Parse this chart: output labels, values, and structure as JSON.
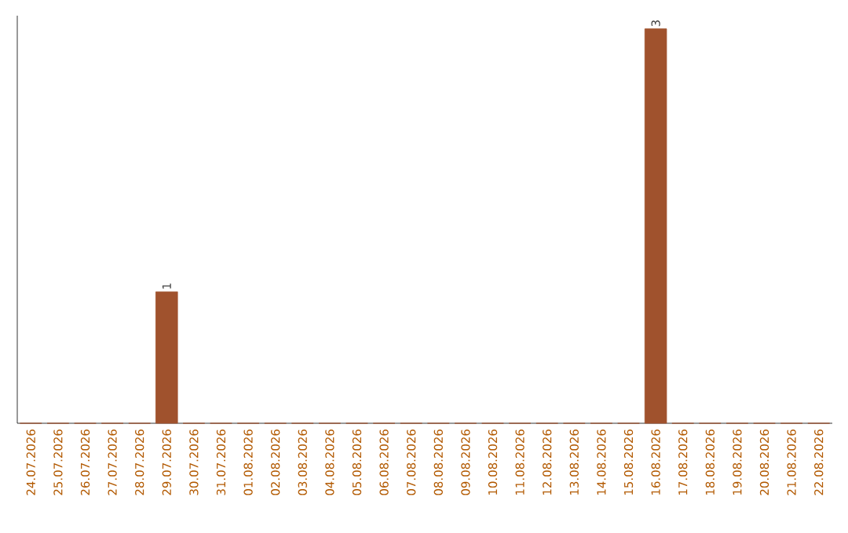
{
  "chart_data": {
    "type": "bar",
    "categories": [
      "24.07.2026",
      "25.07.2026",
      "26.07.2026",
      "27.07.2026",
      "28.07.2026",
      "29.07.2026",
      "30.07.2026",
      "31.07.2026",
      "01.08.2026",
      "02.08.2026",
      "03.08.2026",
      "04.08.2026",
      "05.08.2026",
      "06.08.2026",
      "07.08.2026",
      "08.08.2026",
      "09.08.2026",
      "10.08.2026",
      "11.08.2026",
      "12.08.2026",
      "13.08.2026",
      "14.08.2026",
      "15.08.2026",
      "16.08.2026",
      "17.08.2026",
      "18.08.2026",
      "19.08.2026",
      "20.08.2026",
      "21.08.2026",
      "22.08.2026"
    ],
    "values": [
      0,
      0,
      0,
      0,
      0,
      1,
      0,
      0,
      0,
      0,
      0,
      0,
      0,
      0,
      0,
      0,
      0,
      0,
      0,
      0,
      0,
      0,
      0,
      3,
      0,
      0,
      0,
      0,
      0,
      0
    ],
    "value_labels": [
      null,
      null,
      null,
      null,
      null,
      "1",
      null,
      null,
      null,
      null,
      null,
      null,
      null,
      null,
      null,
      null,
      null,
      null,
      null,
      null,
      null,
      null,
      null,
      "3",
      null,
      null,
      null,
      null,
      null,
      null
    ],
    "color": "#a0522d",
    "ylim": [
      0,
      3.1
    ],
    "tick_labels": "x"
  }
}
